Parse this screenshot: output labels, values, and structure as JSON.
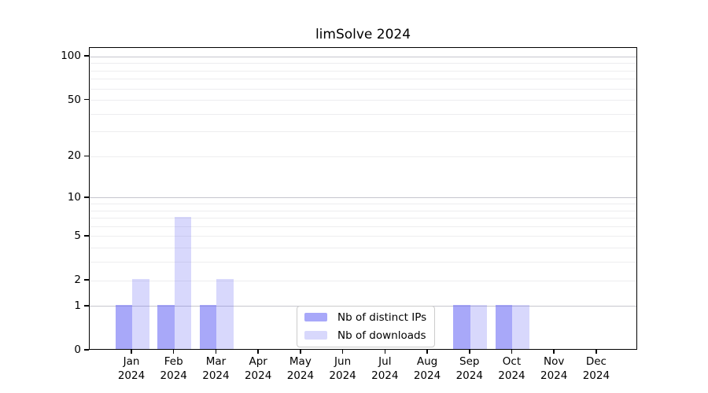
{
  "chart_data": {
    "type": "bar",
    "title": "limSolve 2024",
    "year_label": "2024",
    "categories": [
      "Jan",
      "Feb",
      "Mar",
      "Apr",
      "May",
      "Jun",
      "Jul",
      "Aug",
      "Sep",
      "Oct",
      "Nov",
      "Dec"
    ],
    "series": [
      {
        "name": "Nb of distinct IPs",
        "color": "rgba(110,110,245,0.6)",
        "values": [
          1,
          1,
          1,
          0,
          0,
          0,
          0,
          0,
          1,
          1,
          0,
          0
        ]
      },
      {
        "name": "Nb of downloads",
        "color": "rgba(110,110,245,0.27)",
        "values": [
          2,
          7,
          2,
          0,
          0,
          0,
          0,
          0,
          1,
          1,
          0,
          0
        ]
      }
    ],
    "xlabel": "",
    "ylabel": "",
    "y_scale": "log10(1+x)",
    "y_ticks": [
      0,
      1,
      2,
      5,
      10,
      20,
      50,
      100
    ],
    "y_major_gridlines": [
      1,
      10,
      100
    ],
    "y_minor_gridlines": [
      2,
      3,
      4,
      5,
      6,
      7,
      8,
      9,
      20,
      30,
      40,
      50,
      60,
      70,
      80,
      90
    ],
    "ylim": [
      0,
      115
    ],
    "grid": "on",
    "legend_position": "lower center",
    "colors": {
      "major_grid": "#c6c6ce",
      "minor_grid": "#ededef",
      "axis": "#000000",
      "background": "#ffffff",
      "text": "#000000"
    }
  }
}
